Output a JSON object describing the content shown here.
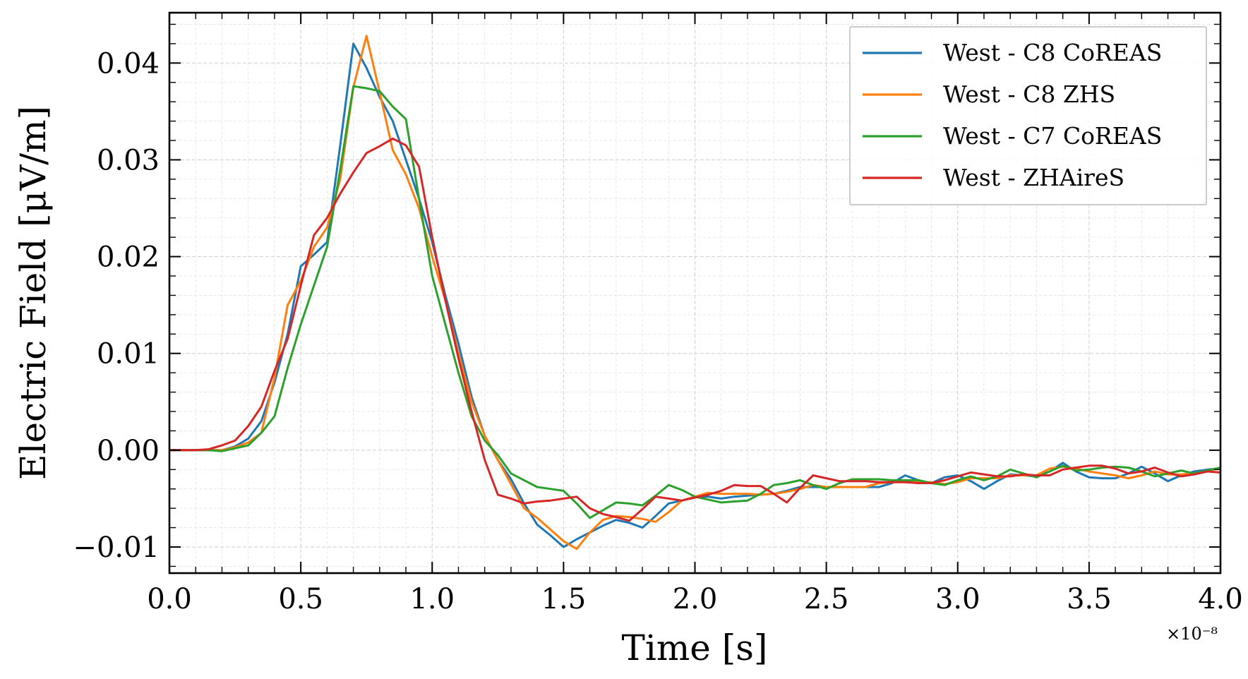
{
  "chart_data": {
    "type": "line",
    "title": "",
    "xlabel": "Time [s]",
    "ylabel": "Electric Field [μV/m]",
    "x_offset_label": "×10⁻⁸",
    "xlim": [
      0.0,
      4.0
    ],
    "ylim": [
      -0.0127,
      0.0452
    ],
    "xticks": [
      0.0,
      0.5,
      1.0,
      1.5,
      2.0,
      2.5,
      3.0,
      3.5,
      4.0
    ],
    "xtick_labels": [
      "0.0",
      "0.5",
      "1.0",
      "1.5",
      "2.0",
      "2.5",
      "3.0",
      "3.5",
      "4.0"
    ],
    "yticks": [
      -0.01,
      0.0,
      0.01,
      0.02,
      0.03,
      0.04
    ],
    "ytick_labels": [
      "−0.01",
      "0.00",
      "0.01",
      "0.02",
      "0.03",
      "0.04"
    ],
    "grid": true,
    "legend_position": "top-right",
    "x": [
      0.0,
      0.05,
      0.1,
      0.15,
      0.2,
      0.25,
      0.3,
      0.35,
      0.4,
      0.45,
      0.5,
      0.55,
      0.6,
      0.65,
      0.7,
      0.75,
      0.8,
      0.85,
      0.9,
      0.95,
      1.0,
      1.05,
      1.1,
      1.15,
      1.2,
      1.25,
      1.3,
      1.35,
      1.4,
      1.45,
      1.5,
      1.55,
      1.6,
      1.65,
      1.7,
      1.75,
      1.8,
      1.85,
      1.9,
      1.95,
      2.0,
      2.05,
      2.1,
      2.15,
      2.2,
      2.25,
      2.3,
      2.35,
      2.4,
      2.45,
      2.5,
      2.55,
      2.6,
      2.65,
      2.7,
      2.75,
      2.8,
      2.85,
      2.9,
      2.95,
      3.0,
      3.05,
      3.1,
      3.15,
      3.2,
      3.25,
      3.3,
      3.35,
      3.4,
      3.45,
      3.5,
      3.55,
      3.6,
      3.65,
      3.7,
      3.75,
      3.8,
      3.85,
      3.9,
      3.95,
      4.0
    ],
    "series": [
      {
        "name": "West - C8 CoREAS",
        "color": "#1f77b4",
        "values": [
          0.0,
          0.0,
          0.0,
          0.0,
          0.0,
          0.0004,
          0.0012,
          0.003,
          0.007,
          0.012,
          0.019,
          0.0202,
          0.0215,
          0.0315,
          0.042,
          0.0395,
          0.0365,
          0.034,
          0.03,
          0.026,
          0.0215,
          0.016,
          0.011,
          0.0055,
          0.0015,
          -0.001,
          -0.003,
          -0.0055,
          -0.0077,
          -0.0088,
          -0.01,
          -0.0092,
          -0.0085,
          -0.0078,
          -0.0072,
          -0.0075,
          -0.008,
          -0.0068,
          -0.0055,
          -0.0052,
          -0.0048,
          -0.0048,
          -0.005,
          -0.0048,
          -0.0047,
          -0.0046,
          -0.0045,
          -0.0042,
          -0.0038,
          -0.0038,
          -0.0038,
          -0.0038,
          -0.0038,
          -0.0038,
          -0.0038,
          -0.0034,
          -0.0026,
          -0.0031,
          -0.0034,
          -0.0028,
          -0.0026,
          -0.0032,
          -0.004,
          -0.0032,
          -0.0025,
          -0.0026,
          -0.0027,
          -0.0022,
          -0.0013,
          -0.0022,
          -0.0028,
          -0.0029,
          -0.0029,
          -0.0024,
          -0.0017,
          -0.0024,
          -0.0032,
          -0.0026,
          -0.0022,
          -0.002,
          -0.0019
        ]
      },
      {
        "name": "West - C8 ZHS",
        "color": "#ff7f0e",
        "values": [
          0.0,
          0.0,
          0.0,
          0.0,
          0.0,
          0.0003,
          0.0008,
          0.0018,
          0.0075,
          0.015,
          0.0175,
          0.021,
          0.023,
          0.028,
          0.0375,
          0.0428,
          0.037,
          0.031,
          0.0285,
          0.025,
          0.02,
          0.0155,
          0.01,
          0.005,
          0.0015,
          -0.001,
          -0.0035,
          -0.006,
          -0.007,
          -0.0082,
          -0.0094,
          -0.0102,
          -0.0085,
          -0.0072,
          -0.0068,
          -0.0069,
          -0.0071,
          -0.0074,
          -0.0064,
          -0.0052,
          -0.0048,
          -0.0044,
          -0.0045,
          -0.0045,
          -0.0045,
          -0.0046,
          -0.0045,
          -0.0043,
          -0.004,
          -0.0036,
          -0.0038,
          -0.0038,
          -0.0038,
          -0.0038,
          -0.0034,
          -0.0033,
          -0.0033,
          -0.0033,
          -0.0033,
          -0.0035,
          -0.0033,
          -0.0029,
          -0.0029,
          -0.0029,
          -0.0026,
          -0.0026,
          -0.0026,
          -0.0019,
          -0.0017,
          -0.0019,
          -0.0022,
          -0.0024,
          -0.0026,
          -0.0029,
          -0.0026,
          -0.0022,
          -0.0025,
          -0.0025,
          -0.0024,
          -0.0021,
          -0.0019
        ]
      },
      {
        "name": "West - C7 CoREAS",
        "color": "#2ca02c",
        "values": [
          0.0,
          0.0,
          0.0,
          0.0,
          -0.0001,
          0.0002,
          0.0005,
          0.0018,
          0.0035,
          0.0085,
          0.013,
          0.017,
          0.021,
          0.029,
          0.0376,
          0.0374,
          0.0371,
          0.0355,
          0.0342,
          0.026,
          0.018,
          0.013,
          0.008,
          0.0035,
          0.001,
          -0.0005,
          -0.0024,
          -0.0031,
          -0.0038,
          -0.004,
          -0.0042,
          -0.0055,
          -0.007,
          -0.0062,
          -0.0054,
          -0.0055,
          -0.0057,
          -0.0047,
          -0.0036,
          -0.0041,
          -0.0048,
          -0.0051,
          -0.0054,
          -0.0053,
          -0.0052,
          -0.0045,
          -0.0036,
          -0.0034,
          -0.0031,
          -0.0036,
          -0.004,
          -0.0034,
          -0.003,
          -0.003,
          -0.003,
          -0.0031,
          -0.0031,
          -0.0031,
          -0.0034,
          -0.0036,
          -0.0031,
          -0.0027,
          -0.0031,
          -0.0027,
          -0.002,
          -0.0024,
          -0.0028,
          -0.0022,
          -0.0016,
          -0.0021,
          -0.002,
          -0.0018,
          -0.0017,
          -0.0018,
          -0.0022,
          -0.0027,
          -0.0024,
          -0.0021,
          -0.0024,
          -0.0021,
          -0.0018
        ]
      },
      {
        "name": "West - ZHAireS",
        "color": "#d62728",
        "values": [
          0.0,
          0.0,
          0.0,
          0.0001,
          0.0005,
          0.001,
          0.0025,
          0.0045,
          0.0082,
          0.0115,
          0.017,
          0.0222,
          0.024,
          0.0265,
          0.0287,
          0.0307,
          0.0314,
          0.0322,
          0.0315,
          0.0293,
          0.022,
          0.0155,
          0.0095,
          0.004,
          -0.001,
          -0.0046,
          -0.005,
          -0.0055,
          -0.0053,
          -0.0052,
          -0.005,
          -0.0048,
          -0.006,
          -0.0066,
          -0.0069,
          -0.0073,
          -0.0061,
          -0.0048,
          -0.005,
          -0.0052,
          -0.0049,
          -0.0046,
          -0.0042,
          -0.0036,
          -0.0037,
          -0.0037,
          -0.0045,
          -0.0054,
          -0.0039,
          -0.0026,
          -0.0029,
          -0.0032,
          -0.0032,
          -0.0032,
          -0.0033,
          -0.0033,
          -0.0033,
          -0.0034,
          -0.0034,
          -0.0031,
          -0.0027,
          -0.0023,
          -0.0025,
          -0.0027,
          -0.0027,
          -0.0025,
          -0.0026,
          -0.0026,
          -0.002,
          -0.0018,
          -0.0016,
          -0.0016,
          -0.0019,
          -0.0024,
          -0.0022,
          -0.0018,
          -0.0023,
          -0.0027,
          -0.0025,
          -0.0022,
          -0.0023
        ]
      }
    ]
  }
}
